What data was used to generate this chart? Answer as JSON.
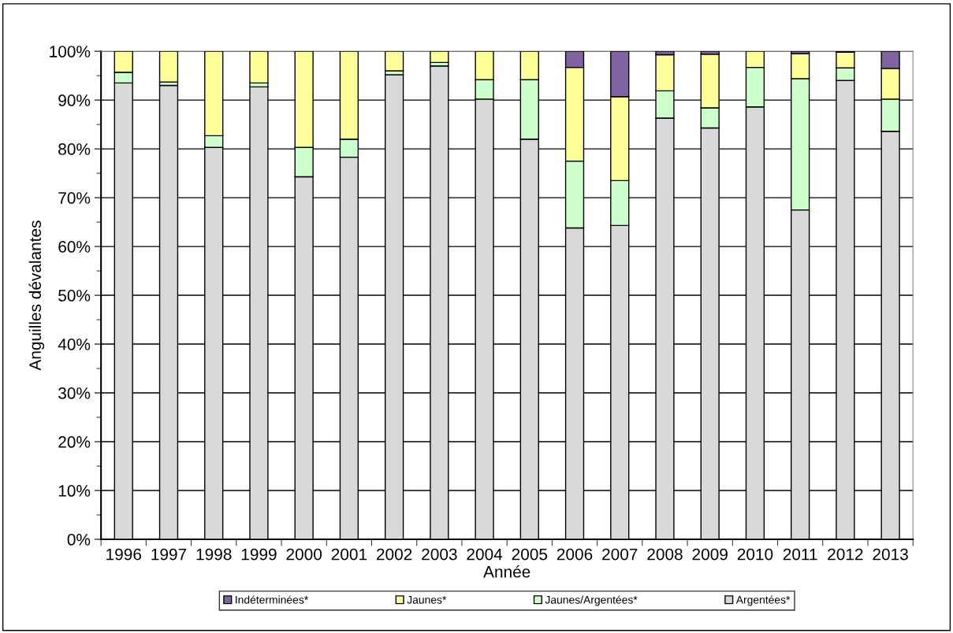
{
  "chart_data": {
    "type": "bar",
    "stacked": true,
    "xlabel": "Année",
    "ylabel": "Anguilles dévalantes",
    "categories": [
      "1996",
      "1997",
      "1998",
      "1999",
      "2000",
      "2001",
      "2002",
      "2003",
      "2004",
      "2005",
      "2006",
      "2007",
      "2008",
      "2009",
      "2010",
      "2011",
      "2012",
      "2013"
    ],
    "series": [
      {
        "name": "Argentées*",
        "color": "#d9d9d9",
        "values": [
          93.5,
          93,
          80.3,
          92.7,
          74.3,
          78.3,
          95.2,
          97,
          90.2,
          82,
          63.8,
          64.3,
          86.3,
          84.3,
          88.6,
          67.5,
          94,
          83.6
        ]
      },
      {
        "name": "Jaunes/Argentées*",
        "color": "#ccffcc",
        "values": [
          2.2,
          0.7,
          2.4,
          0.8,
          6,
          3.7,
          0.8,
          0.7,
          4,
          12.2,
          13.7,
          9.2,
          5.6,
          4.1,
          8.1,
          26.9,
          2.6,
          6.6
        ]
      },
      {
        "name": "Jaunes*",
        "color": "#ffff99",
        "values": [
          4.3,
          6.3,
          17.3,
          6.5,
          19.7,
          18,
          4,
          2.3,
          5.8,
          5.8,
          19.2,
          17.2,
          7.4,
          11,
          3.3,
          5.1,
          3.2,
          6.3
        ]
      },
      {
        "name": "Indéterminées*",
        "color": "#8064a2",
        "values": [
          null,
          null,
          null,
          null,
          null,
          null,
          null,
          null,
          null,
          null,
          3.3,
          9.3,
          0.7,
          0.6,
          null,
          0.5,
          0.2,
          3.5
        ]
      }
    ],
    "ylim": [
      0,
      100
    ],
    "yticks": [
      {
        "value": 0,
        "label": "0%"
      },
      {
        "value": 10,
        "label": "10%"
      },
      {
        "value": 20,
        "label": "20%"
      },
      {
        "value": 30,
        "label": "30%"
      },
      {
        "value": 40,
        "label": "40%"
      },
      {
        "value": 50,
        "label": "50%"
      },
      {
        "value": 60,
        "label": "60%"
      },
      {
        "value": 70,
        "label": "70%"
      },
      {
        "value": 80,
        "label": "80%"
      },
      {
        "value": 90,
        "label": "90%"
      },
      {
        "value": 100,
        "label": "100%"
      }
    ],
    "grid": "y",
    "legend": "bottom"
  }
}
